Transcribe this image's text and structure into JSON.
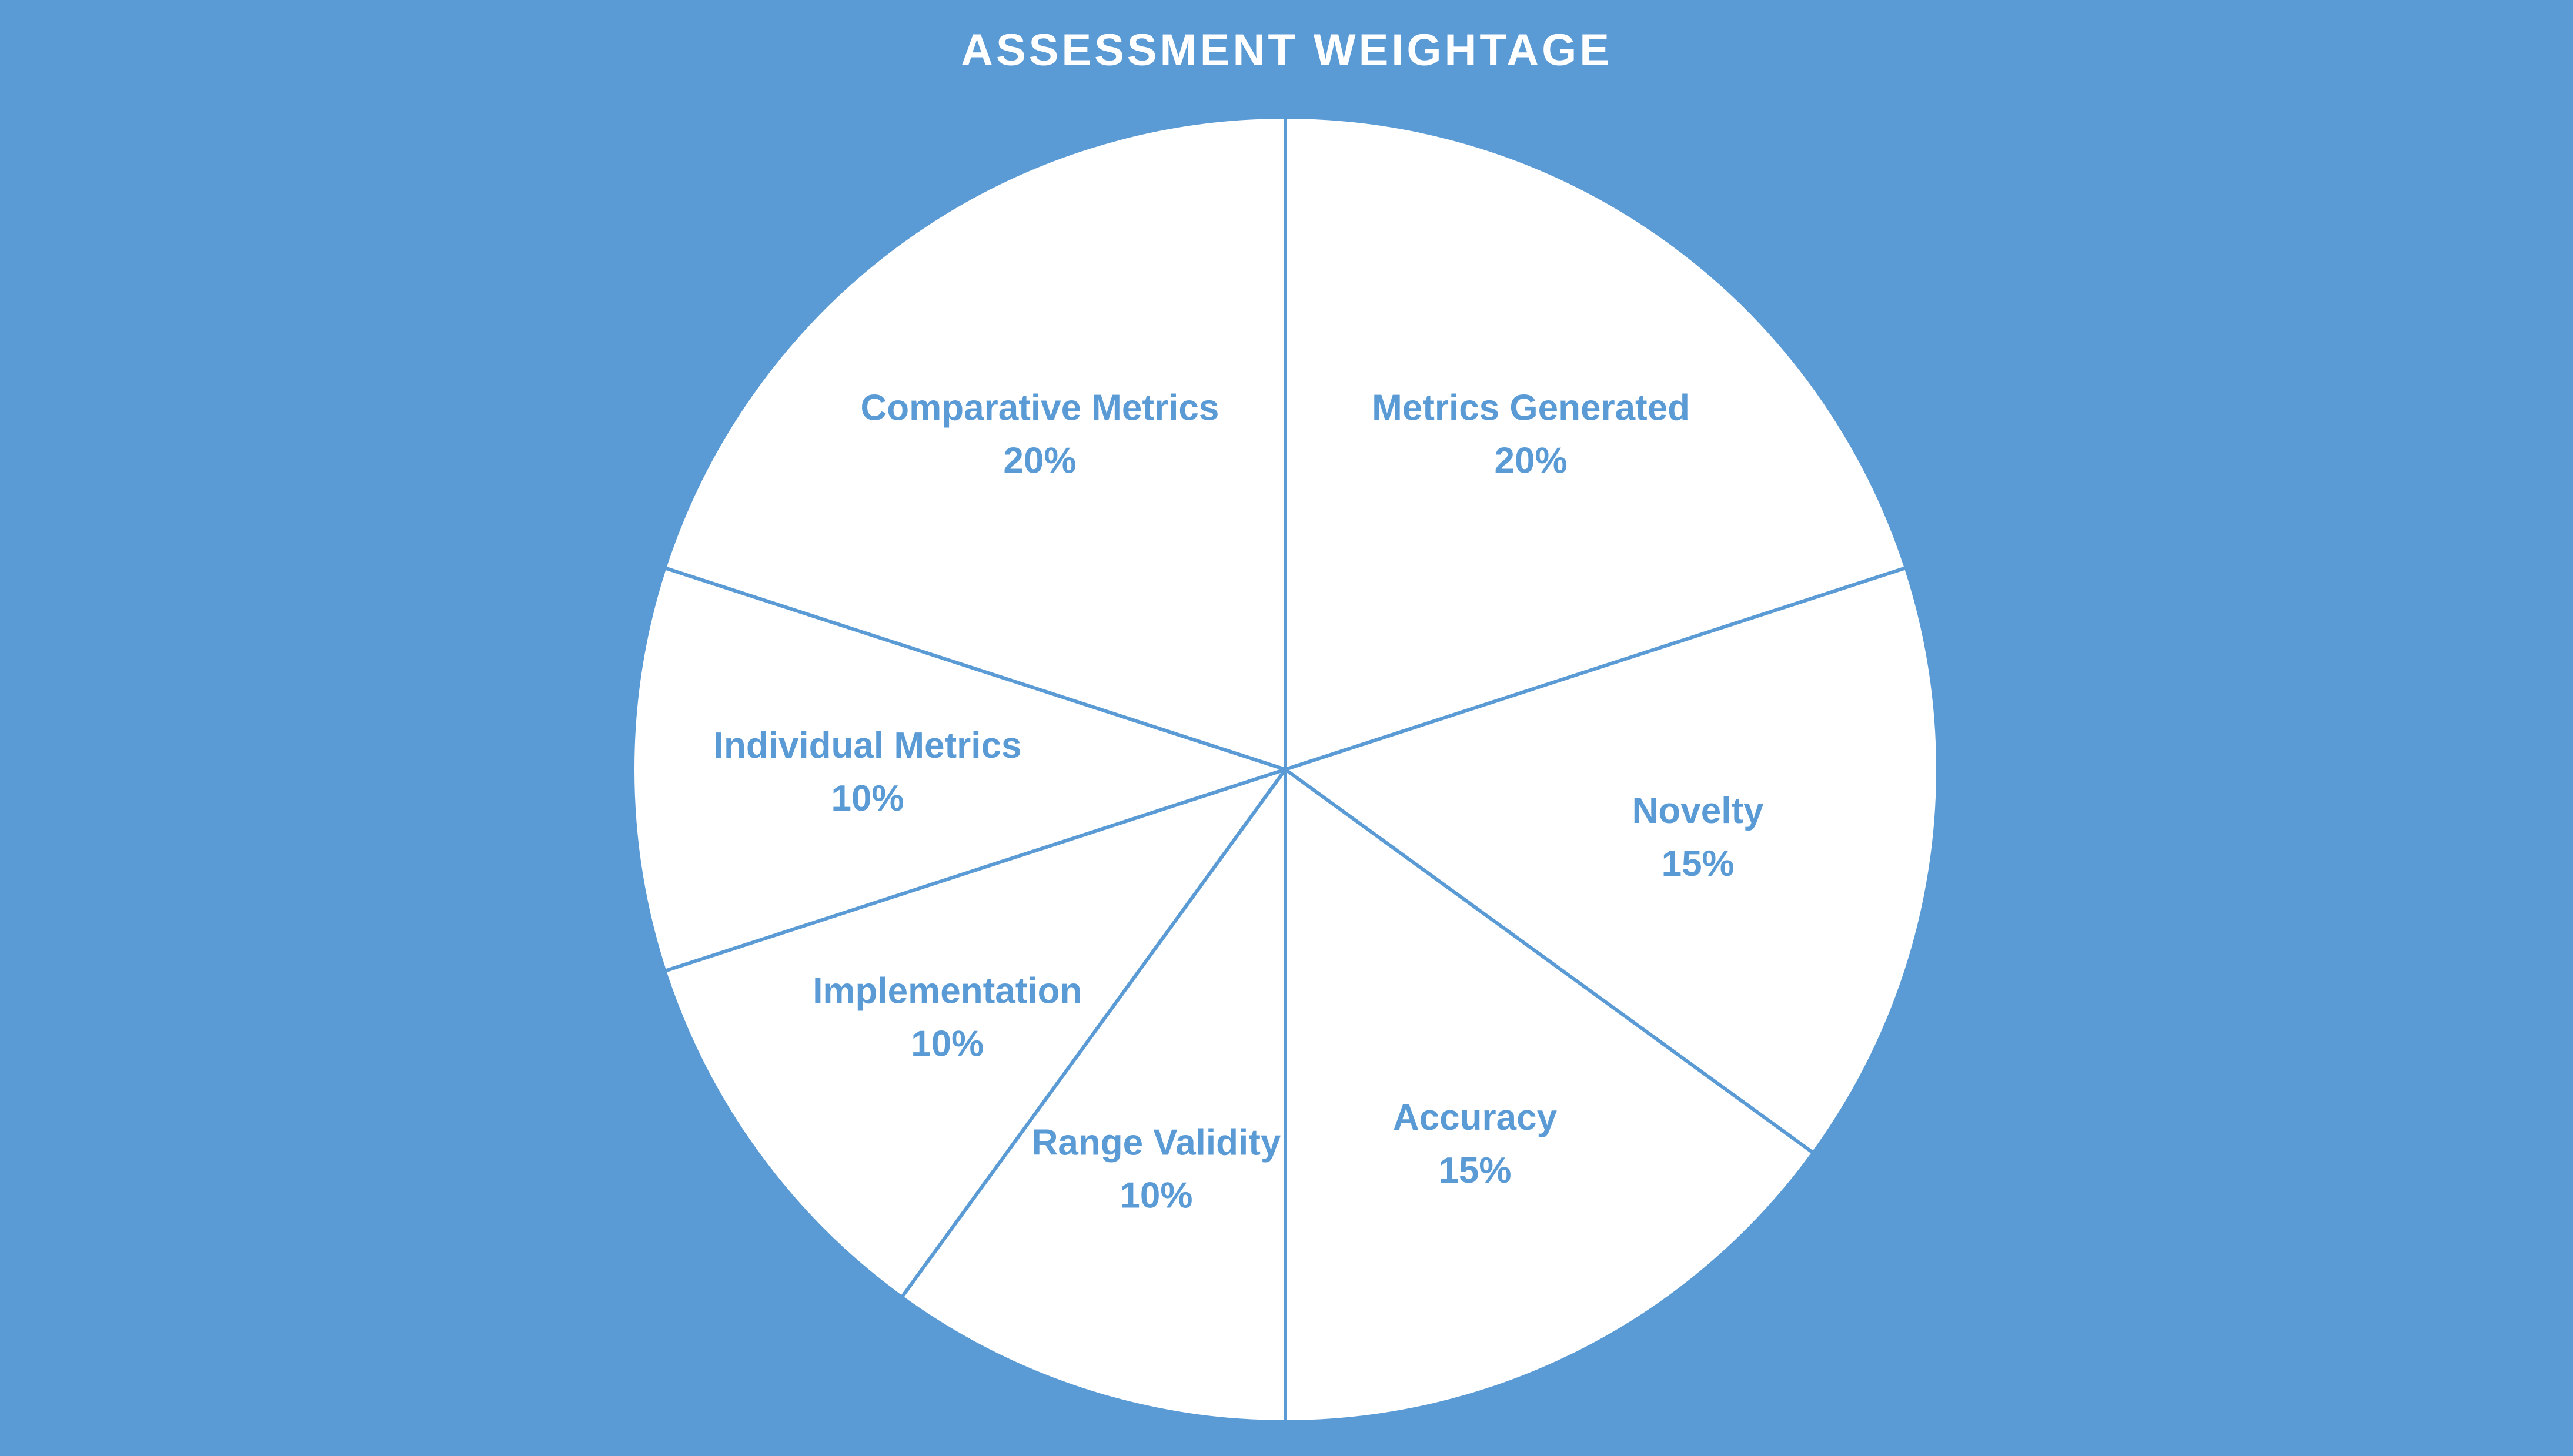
{
  "colors": {
    "background": "#5b9bd5",
    "slice_fill": "#ffffff",
    "label": "#5b9bd5",
    "title": "#ffffff"
  },
  "chart_data": {
    "type": "pie",
    "title": "ASSESSMENT WEIGHTAGE",
    "start_angle_deg": 0,
    "direction": "clockwise",
    "slices": [
      {
        "label": "Metrics Generated",
        "value": 20,
        "value_label": "20%"
      },
      {
        "label": "Novelty",
        "value": 15,
        "value_label": "15%"
      },
      {
        "label": "Accuracy",
        "value": 15,
        "value_label": "15%"
      },
      {
        "label": "Range Validity",
        "value": 10,
        "value_label": "10%"
      },
      {
        "label": "Implementation",
        "value": 10,
        "value_label": "10%"
      },
      {
        "label": "Individual Metrics",
        "value": 10,
        "value_label": "10%"
      },
      {
        "label": "Comparative Metrics",
        "value": 20,
        "value_label": "20%"
      }
    ]
  }
}
